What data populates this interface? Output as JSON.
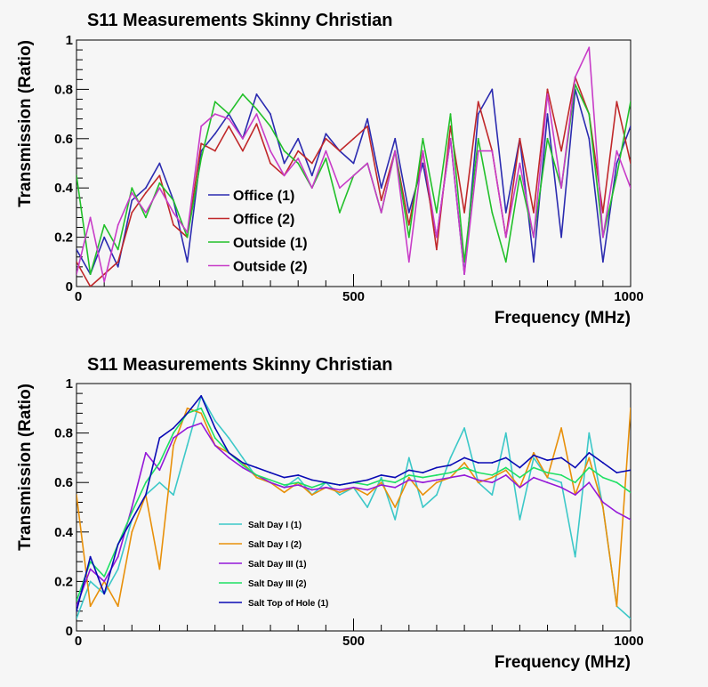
{
  "chart_data": [
    {
      "type": "line",
      "title": "S11 Measurements Skinny Christian",
      "xlabel": "Frequency (MHz)",
      "ylabel": "Transmission (Ratio)",
      "xlim": [
        0,
        1000
      ],
      "ylim": [
        0,
        1
      ],
      "x_ticks": [
        "0",
        "500",
        "1000"
      ],
      "y_ticks": [
        "0",
        "0.2",
        "0.4",
        "0.6",
        "0.8",
        "1"
      ],
      "grid": false,
      "legend_position": "center-left",
      "legend_size": "large",
      "x": [
        0,
        25,
        50,
        75,
        100,
        125,
        150,
        175,
        200,
        225,
        250,
        275,
        300,
        325,
        350,
        375,
        400,
        425,
        450,
        475,
        500,
        525,
        550,
        575,
        600,
        625,
        650,
        675,
        700,
        725,
        750,
        775,
        800,
        825,
        850,
        875,
        900,
        925,
        950,
        975,
        1000
      ],
      "series": [
        {
          "name": "Office (1)",
          "color": "#2b2bb0",
          "values": [
            0.15,
            0.05,
            0.2,
            0.08,
            0.35,
            0.4,
            0.5,
            0.35,
            0.1,
            0.55,
            0.62,
            0.7,
            0.6,
            0.78,
            0.7,
            0.5,
            0.6,
            0.45,
            0.62,
            0.55,
            0.5,
            0.68,
            0.4,
            0.6,
            0.3,
            0.5,
            0.2,
            0.6,
            0.05,
            0.7,
            0.8,
            0.3,
            0.6,
            0.1,
            0.7,
            0.2,
            0.8,
            0.6,
            0.1,
            0.5,
            0.65
          ]
        },
        {
          "name": "Office (2)",
          "color": "#c0282a",
          "values": [
            0.1,
            0.0,
            0.05,
            0.1,
            0.3,
            0.38,
            0.45,
            0.25,
            0.2,
            0.58,
            0.55,
            0.65,
            0.55,
            0.66,
            0.5,
            0.45,
            0.55,
            0.5,
            0.6,
            0.55,
            0.6,
            0.65,
            0.35,
            0.55,
            0.25,
            0.55,
            0.15,
            0.65,
            0.3,
            0.75,
            0.55,
            0.2,
            0.6,
            0.3,
            0.8,
            0.55,
            0.85,
            0.7,
            0.3,
            0.75,
            0.5
          ]
        },
        {
          "name": "Outside (1)",
          "color": "#22c02a",
          "values": [
            0.45,
            0.05,
            0.25,
            0.15,
            0.4,
            0.28,
            0.42,
            0.35,
            0.2,
            0.52,
            0.75,
            0.7,
            0.78,
            0.72,
            0.65,
            0.55,
            0.5,
            0.4,
            0.52,
            0.3,
            0.45,
            0.5,
            0.3,
            0.55,
            0.2,
            0.6,
            0.3,
            0.7,
            0.1,
            0.6,
            0.3,
            0.1,
            0.45,
            0.2,
            0.6,
            0.4,
            0.82,
            0.7,
            0.2,
            0.45,
            0.75
          ]
        },
        {
          "name": "Outside (2)",
          "color": "#c83cc8",
          "values": [
            0.05,
            0.28,
            0.02,
            0.25,
            0.38,
            0.3,
            0.4,
            0.3,
            0.22,
            0.65,
            0.7,
            0.68,
            0.6,
            0.7,
            0.55,
            0.45,
            0.52,
            0.4,
            0.55,
            0.4,
            0.45,
            0.5,
            0.3,
            0.55,
            0.1,
            0.55,
            0.2,
            0.6,
            0.05,
            0.55,
            0.55,
            0.2,
            0.5,
            0.2,
            0.78,
            0.4,
            0.85,
            0.97,
            0.2,
            0.55,
            0.4
          ]
        }
      ]
    },
    {
      "type": "line",
      "title": "S11 Measurements Skinny Christian",
      "xlabel": "Frequency (MHz)",
      "ylabel": "Transmission (Ratio)",
      "xlim": [
        0,
        1000
      ],
      "ylim": [
        0,
        1
      ],
      "x_ticks": [
        "0",
        "500",
        "1000"
      ],
      "y_ticks": [
        "0",
        "0.2",
        "0.4",
        "0.6",
        "0.8",
        "1"
      ],
      "grid": false,
      "legend_position": "bottom-left",
      "legend_size": "small",
      "x": [
        0,
        25,
        50,
        75,
        100,
        125,
        150,
        175,
        200,
        225,
        250,
        275,
        300,
        325,
        350,
        375,
        400,
        425,
        450,
        475,
        500,
        525,
        550,
        575,
        600,
        625,
        650,
        675,
        700,
        725,
        750,
        775,
        800,
        825,
        850,
        875,
        900,
        925,
        950,
        975,
        1000
      ],
      "series": [
        {
          "name": "Salt Day I (1)",
          "color": "#3cc8c8",
          "values": [
            0.05,
            0.2,
            0.15,
            0.25,
            0.45,
            0.55,
            0.6,
            0.55,
            0.75,
            0.95,
            0.85,
            0.78,
            0.7,
            0.62,
            0.6,
            0.58,
            0.62,
            0.55,
            0.6,
            0.55,
            0.58,
            0.5,
            0.62,
            0.45,
            0.7,
            0.5,
            0.55,
            0.7,
            0.82,
            0.6,
            0.55,
            0.8,
            0.45,
            0.7,
            0.62,
            0.6,
            0.3,
            0.8,
            0.5,
            0.1,
            0.05
          ]
        },
        {
          "name": "Salt Day I (2)",
          "color": "#e8900a",
          "values": [
            0.55,
            0.1,
            0.2,
            0.1,
            0.4,
            0.55,
            0.25,
            0.75,
            0.9,
            0.88,
            0.75,
            0.72,
            0.68,
            0.62,
            0.6,
            0.56,
            0.6,
            0.55,
            0.58,
            0.56,
            0.58,
            0.55,
            0.6,
            0.5,
            0.62,
            0.55,
            0.6,
            0.62,
            0.68,
            0.6,
            0.62,
            0.65,
            0.58,
            0.72,
            0.62,
            0.82,
            0.55,
            0.7,
            0.5,
            0.1,
            0.9
          ]
        },
        {
          "name": "Salt Day III (1)",
          "color": "#9418d8",
          "values": [
            0.1,
            0.25,
            0.2,
            0.3,
            0.5,
            0.72,
            0.65,
            0.78,
            0.82,
            0.84,
            0.75,
            0.7,
            0.66,
            0.63,
            0.6,
            0.58,
            0.59,
            0.57,
            0.58,
            0.57,
            0.58,
            0.57,
            0.59,
            0.58,
            0.61,
            0.6,
            0.61,
            0.62,
            0.63,
            0.61,
            0.6,
            0.63,
            0.58,
            0.62,
            0.6,
            0.58,
            0.55,
            0.6,
            0.52,
            0.48,
            0.45
          ]
        },
        {
          "name": "Salt Day III (2)",
          "color": "#1ee064",
          "values": [
            0.12,
            0.28,
            0.22,
            0.35,
            0.48,
            0.6,
            0.68,
            0.8,
            0.88,
            0.9,
            0.78,
            0.72,
            0.67,
            0.63,
            0.61,
            0.59,
            0.6,
            0.58,
            0.6,
            0.59,
            0.6,
            0.59,
            0.61,
            0.6,
            0.63,
            0.62,
            0.63,
            0.64,
            0.66,
            0.64,
            0.63,
            0.66,
            0.62,
            0.66,
            0.64,
            0.63,
            0.6,
            0.66,
            0.62,
            0.6,
            0.56
          ]
        },
        {
          "name": "Salt Top of Hole (1)",
          "color": "#0a0ab4",
          "values": [
            0.08,
            0.3,
            0.15,
            0.35,
            0.45,
            0.55,
            0.78,
            0.82,
            0.88,
            0.95,
            0.82,
            0.72,
            0.68,
            0.66,
            0.64,
            0.62,
            0.63,
            0.61,
            0.6,
            0.59,
            0.6,
            0.61,
            0.63,
            0.62,
            0.65,
            0.64,
            0.66,
            0.67,
            0.7,
            0.68,
            0.68,
            0.7,
            0.66,
            0.71,
            0.69,
            0.7,
            0.66,
            0.72,
            0.68,
            0.64,
            0.65
          ]
        }
      ]
    }
  ]
}
